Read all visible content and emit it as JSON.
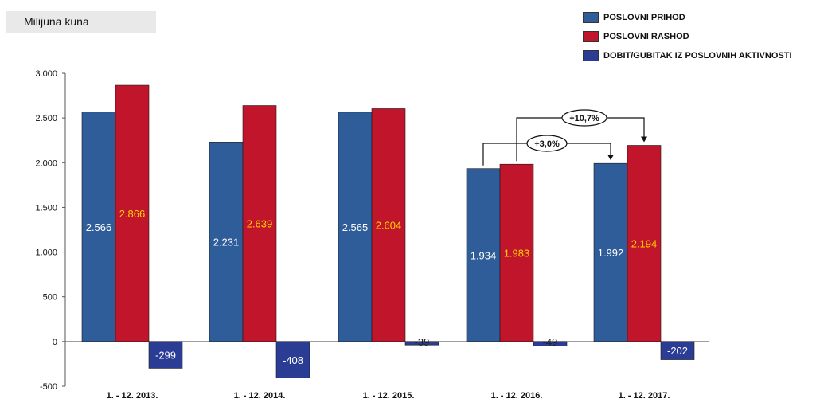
{
  "unit_label": "Milijuna kuna",
  "chart_data": {
    "type": "bar",
    "title": "",
    "xlabel": "",
    "ylabel": "Milijuna kuna",
    "ylim": [
      -500,
      3000
    ],
    "yticks": [
      -500,
      0,
      500,
      1000,
      1500,
      2000,
      2500,
      3000
    ],
    "ytick_labels": [
      "-500",
      "0",
      "500",
      "1.000",
      "1.500",
      "2.000",
      "2.500",
      "3.000"
    ],
    "grid": false,
    "legend_position": "top-right",
    "categories": [
      "1. - 12. 2013.",
      "1. - 12. 2014.",
      "1. - 12. 2015.",
      "1. - 12. 2016.",
      "1. - 12. 2017."
    ],
    "series": [
      {
        "name": "POSLOVNI PRIHOD",
        "color": "#2e5d9a",
        "values": [
          2566,
          2231,
          2565,
          1934,
          1992
        ],
        "labels": [
          "2.566",
          "2.231",
          "2.565",
          "1.934",
          "1.992"
        ]
      },
      {
        "name": "POSLOVNI RASHOD",
        "color": "#c0152a",
        "values": [
          2866,
          2639,
          2604,
          1983,
          2194
        ],
        "labels": [
          "2.866",
          "2.639",
          "2.604",
          "1.983",
          "2.194"
        ]
      },
      {
        "name": "DOBIT/GUBITAK IZ POSLOVNIH AKTIVNOSTI",
        "color": "#2a3c94",
        "values": [
          -299,
          -408,
          -39,
          -49,
          -202
        ],
        "labels": [
          "-299",
          "-408",
          "-39",
          "-49",
          "-202"
        ]
      }
    ],
    "annotations": [
      {
        "text": "+3,0%",
        "from": {
          "category": 3,
          "series": 0
        },
        "to": {
          "category": 4,
          "series": 0
        }
      },
      {
        "text": "+10,7%",
        "from": {
          "category": 3,
          "series": 1
        },
        "to": {
          "category": 4,
          "series": 1
        }
      }
    ]
  }
}
